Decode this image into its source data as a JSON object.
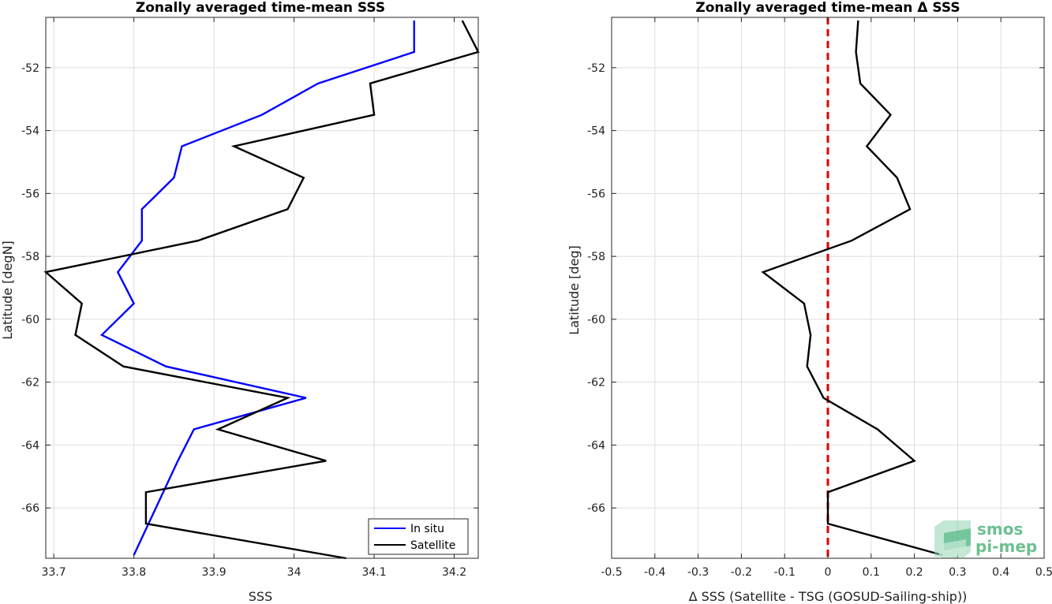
{
  "chart_data": [
    {
      "type": "line",
      "title": "Zonally averaged time-mean SSS",
      "xlabel": "SSS",
      "ylabel": "Latitude [degN]",
      "xlim": [
        33.69,
        34.23
      ],
      "ylim": [
        -67.6,
        -50.4
      ],
      "xticks": [
        33.7,
        33.8,
        33.9,
        34,
        34.1,
        34.2
      ],
      "xtick_labels": [
        "33.7",
        "33.8",
        "33.9",
        "34",
        "34.1",
        "34.2"
      ],
      "yticks": [
        -52,
        -54,
        -56,
        -58,
        -60,
        -62,
        -64,
        -66
      ],
      "ytick_labels": [
        "-52",
        "-54",
        "-56",
        "-58",
        "-60",
        "-62",
        "-64",
        "-66"
      ],
      "grid": true,
      "legend_position": "bottom-right",
      "series": [
        {
          "name": "In situ",
          "color": "#0000ff",
          "x": [
            34.15,
            34.15,
            34.03,
            33.96,
            33.86,
            33.85,
            33.81,
            33.81,
            33.78,
            33.8,
            33.76,
            33.84,
            34.015,
            33.875,
            33.855,
            33.8
          ],
          "y": [
            -50.5,
            -51.5,
            -52.5,
            -53.5,
            -54.5,
            -55.5,
            -56.5,
            -57.5,
            -58.5,
            -59.5,
            -60.5,
            -61.5,
            -62.5,
            -63.5,
            -64.5,
            -67.5
          ]
        },
        {
          "name": "Satellite",
          "color": "#000000",
          "x": [
            34.21,
            34.23,
            34.095,
            34.1,
            33.925,
            34.012,
            33.992,
            33.88,
            33.69,
            33.735,
            33.727,
            33.787,
            33.992,
            33.905,
            34.04,
            33.815,
            33.815,
            34.065
          ],
          "y": [
            -50.5,
            -51.5,
            -52.5,
            -53.5,
            -54.5,
            -55.5,
            -56.5,
            -57.5,
            -58.5,
            -59.5,
            -60.5,
            -61.5,
            -62.5,
            -63.5,
            -64.5,
            -65.5,
            -66.5,
            -67.6
          ]
        }
      ]
    },
    {
      "type": "line",
      "title": "Zonally averaged time-mean Δ SSS",
      "xlabel": "Δ SSS (Satellite - TSG (GOSUD-Sailing-ship))",
      "ylabel": "Latitude [deg]",
      "xlim": [
        -0.5,
        0.5
      ],
      "ylim": [
        -67.6,
        -50.4
      ],
      "xticks": [
        -0.5,
        -0.4,
        -0.3,
        -0.2,
        -0.1,
        0,
        0.1,
        0.2,
        0.3,
        0.4,
        0.5
      ],
      "xtick_labels": [
        "-0.5",
        "-0.4",
        "-0.3",
        "-0.2",
        "-0.1",
        "0",
        "0.1",
        "0.2",
        "0.3",
        "0.4",
        "0.5"
      ],
      "yticks": [
        -52,
        -54,
        -56,
        -58,
        -60,
        -62,
        -64,
        -66
      ],
      "ytick_labels": [
        "-52",
        "-54",
        "-56",
        "-58",
        "-60",
        "-62",
        "-64",
        "-66"
      ],
      "grid": true,
      "reference_line": {
        "x": 0,
        "color": "#e00000",
        "style": "dashed"
      },
      "series": [
        {
          "color": "#000000",
          "x": [
            0.07,
            0.065,
            0.075,
            0.145,
            0.09,
            0.16,
            0.19,
            0.055,
            -0.15,
            -0.055,
            -0.04,
            -0.048,
            -0.01,
            0.115,
            0.2,
            0.0,
            0.0,
            0.265
          ],
          "y": [
            -50.5,
            -51.5,
            -52.5,
            -53.5,
            -54.5,
            -55.5,
            -56.5,
            -57.5,
            -58.5,
            -59.5,
            -60.5,
            -61.5,
            -62.5,
            -63.5,
            -64.5,
            -65.5,
            -66.5,
            -67.5
          ]
        }
      ]
    }
  ],
  "logo": {
    "line1": "smos",
    "line2": "pi-mep",
    "colors": [
      "#1b9e5a",
      "#8fd3b0",
      "#c8ead8"
    ]
  }
}
